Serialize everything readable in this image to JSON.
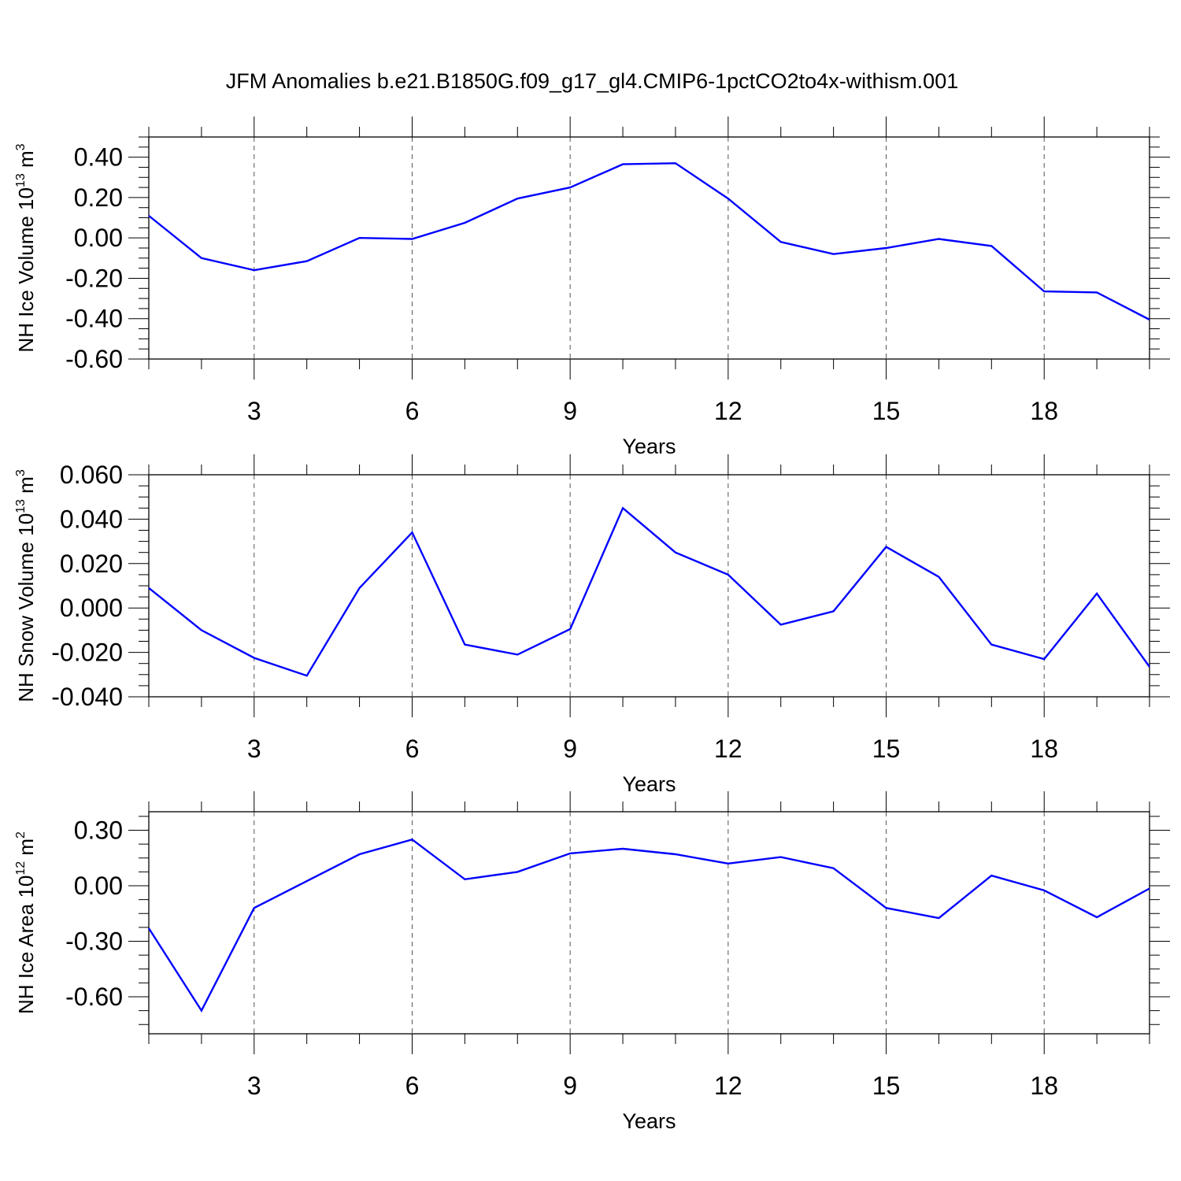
{
  "chart_data": {
    "title": "JFM Anomalies b.e21.B1850G.f09_g17_gl4.CMIP6-1pctCO2to4x-withism.001",
    "line_color": "#0000ff",
    "panels": [
      {
        "type": "line",
        "ylabel_main": "NH Ice Volume 10",
        "ylabel_exp": "13",
        "ylabel_unit": " m",
        "ylabel_unit_exp": "3",
        "xlabel": "Years",
        "xlim": [
          1,
          20
        ],
        "ylim": [
          -0.6,
          0.5
        ],
        "yticks": [
          -0.6,
          -0.4,
          -0.2,
          0.0,
          0.2,
          0.4
        ],
        "ytick_labels": [
          "-0.60",
          "-0.40",
          "-0.20",
          "0.00",
          "0.20",
          "0.40"
        ],
        "xticks": [
          3,
          6,
          9,
          12,
          15,
          18
        ],
        "xtick_labels": [
          "3",
          "6",
          "9",
          "12",
          "15",
          "18"
        ],
        "x": [
          1,
          2,
          3,
          4,
          5,
          6,
          7,
          8,
          9,
          10,
          11,
          12,
          13,
          14,
          15,
          16,
          17,
          18,
          19,
          20
        ],
        "values": [
          0.11,
          -0.1,
          -0.16,
          -0.115,
          0.0,
          -0.005,
          0.075,
          0.195,
          0.25,
          0.365,
          0.37,
          0.195,
          -0.02,
          -0.08,
          -0.05,
          -0.005,
          -0.04,
          -0.265,
          -0.27,
          -0.405
        ]
      },
      {
        "type": "line",
        "ylabel_main": "NH Snow Volume 10",
        "ylabel_exp": "13",
        "ylabel_unit": " m",
        "ylabel_unit_exp": "3",
        "xlabel": "Years",
        "xlim": [
          1,
          20
        ],
        "ylim": [
          -0.04,
          0.06
        ],
        "yticks": [
          -0.04,
          -0.02,
          0.0,
          0.02,
          0.04,
          0.06
        ],
        "ytick_labels": [
          "-0.040",
          "-0.020",
          "0.000",
          "0.020",
          "0.040",
          "0.060"
        ],
        "xticks": [
          3,
          6,
          9,
          12,
          15,
          18
        ],
        "xtick_labels": [
          "3",
          "6",
          "9",
          "12",
          "15",
          "18"
        ],
        "x": [
          1,
          2,
          3,
          4,
          5,
          6,
          7,
          8,
          9,
          10,
          11,
          12,
          13,
          14,
          15,
          16,
          17,
          18,
          19,
          20
        ],
        "values": [
          0.009,
          -0.01,
          -0.0225,
          -0.0305,
          0.009,
          0.034,
          -0.0165,
          -0.021,
          -0.0095,
          0.045,
          0.025,
          0.015,
          -0.0075,
          -0.0015,
          0.0275,
          0.014,
          -0.0165,
          -0.023,
          0.0065,
          -0.0265
        ]
      },
      {
        "type": "line",
        "ylabel_main": "NH Ice Area 10",
        "ylabel_exp": "12",
        "ylabel_unit": " m",
        "ylabel_unit_exp": "2",
        "xlabel": "Years",
        "xlim": [
          1,
          20
        ],
        "ylim": [
          -0.8,
          0.4
        ],
        "yticks": [
          -0.6,
          -0.3,
          0.0,
          0.3
        ],
        "ytick_labels": [
          "-0.60",
          "-0.30",
          "0.00",
          "0.30"
        ],
        "xticks": [
          3,
          6,
          9,
          12,
          15,
          18
        ],
        "xtick_labels": [
          "3",
          "6",
          "9",
          "12",
          "15",
          "18"
        ],
        "x": [
          1,
          2,
          3,
          4,
          5,
          6,
          7,
          8,
          9,
          10,
          11,
          12,
          13,
          14,
          15,
          16,
          17,
          18,
          19,
          20
        ],
        "values": [
          -0.23,
          -0.675,
          -0.12,
          0.025,
          0.17,
          0.25,
          0.035,
          0.075,
          0.175,
          0.2,
          0.17,
          0.12,
          0.155,
          0.095,
          -0.12,
          -0.175,
          0.055,
          -0.025,
          -0.17,
          -0.015
        ]
      }
    ]
  }
}
